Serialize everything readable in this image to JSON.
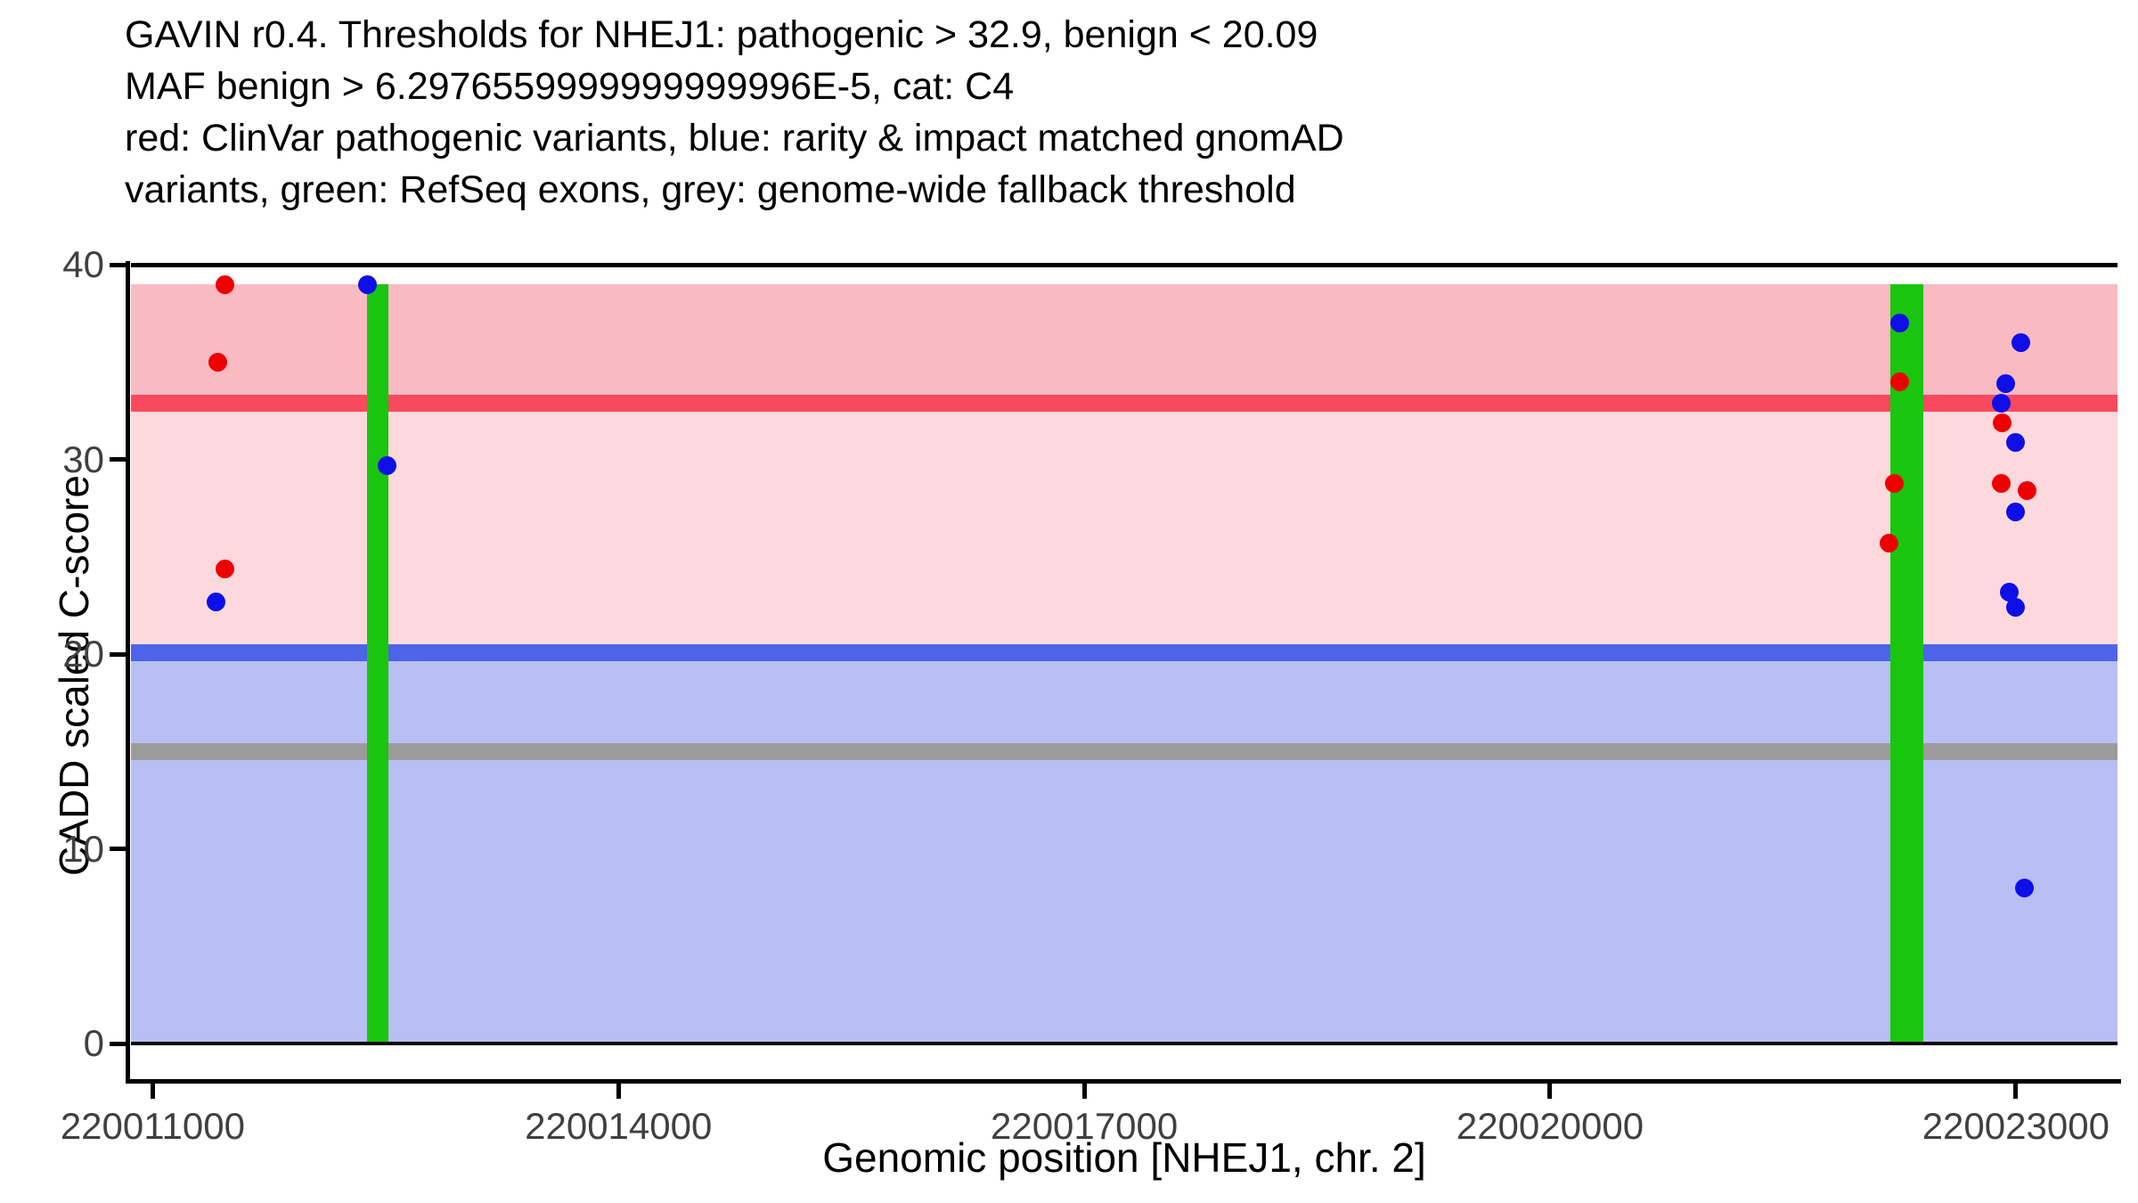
{
  "chart_data": {
    "type": "scatter",
    "title_lines": [
      "GAVIN r0.4. Thresholds for NHEJ1: pathogenic > 32.9, benign < 20.09",
      "MAF benign > 6.2976559999999999996E-5, cat: C4",
      "red: ClinVar pathogenic variants, blue: rarity & impact matched gnomAD",
      "variants, green: RefSeq exons, grey: genome-wide fallback threshold"
    ],
    "xlabel": "Genomic position [NHEJ1, chr. 2]",
    "ylabel": "CADD scaled C-score",
    "gene": "NHEJ1",
    "chromosome": "2",
    "xlim": [
      220010860,
      220023655
    ],
    "ylim": [
      -2,
      40.2
    ],
    "x_ticks": [
      220011000,
      220014000,
      220017000,
      220020000,
      220023000
    ],
    "y_ticks": [
      0,
      10,
      20,
      30,
      40
    ],
    "grid": false,
    "thresholds": {
      "pathogenic_gt": 32.9,
      "benign_lt": 20.09,
      "maf_benign_gt": "6.2976559999999999996E-5",
      "category": "C4",
      "genome_wide_fallback": 15
    },
    "regions": [
      {
        "name": "pathogenic-zone",
        "ymin": 32.9,
        "ymax": 39.0,
        "color_key": "region_pathogenic"
      },
      {
        "name": "intermediate-zone",
        "ymin": 20.09,
        "ymax": 32.9,
        "color_key": "region_intermediate"
      },
      {
        "name": "benign-zone",
        "ymin": 0,
        "ymax": 20.09,
        "color_key": "region_benign"
      }
    ],
    "threshold_lines": [
      {
        "name": "pathogenic",
        "y": 32.9,
        "color_key": "pathogenic_line",
        "thickness_px": 19
      },
      {
        "name": "benign",
        "y": 20.09,
        "color_key": "benign_line",
        "thickness_px": 19
      },
      {
        "name": "fallback",
        "y": 15,
        "color_key": "fallback_line",
        "thickness_px": 19
      }
    ],
    "baselines": [
      {
        "name": "top-baseline",
        "y": 40,
        "thickness_px": 5
      },
      {
        "name": "zero-baseline",
        "y": 0,
        "thickness_px": 4
      }
    ],
    "exons": [
      {
        "start": 220012382,
        "end": 220012520,
        "ymin": 0,
        "ymax": 39.0
      },
      {
        "start": 220022191,
        "end": 220022403,
        "ymin": 0,
        "ymax": 39.0
      }
    ],
    "series": [
      {
        "name": "ClinVar pathogenic variants",
        "color_key": "clinvar_point",
        "points": [
          [
            220011465,
            39.0
          ],
          [
            220011419,
            35.0
          ],
          [
            220011465,
            24.4
          ],
          [
            220022254,
            34.0
          ],
          [
            220022220,
            28.8
          ],
          [
            220022185,
            25.7
          ],
          [
            220022914,
            31.9
          ],
          [
            220022908,
            28.8
          ],
          [
            220023075,
            28.4
          ]
        ]
      },
      {
        "name": "rarity & impact matched gnomAD variants",
        "color_key": "gnomad_point",
        "points": [
          [
            220012382,
            39.0
          ],
          [
            220012509,
            29.7
          ],
          [
            220011407,
            22.7
          ],
          [
            220022254,
            37.0
          ],
          [
            220023034,
            36.0
          ],
          [
            220022937,
            33.9
          ],
          [
            220022908,
            32.9
          ],
          [
            220023000,
            30.9
          ],
          [
            220023000,
            27.3
          ],
          [
            220022960,
            23.2
          ],
          [
            220023000,
            22.4
          ],
          [
            220023057,
            8.0
          ]
        ]
      }
    ]
  },
  "colors": {
    "region_pathogenic": "#f9bac1",
    "region_intermediate": "#fdd8dd",
    "region_benign": "#b8bff3",
    "pathogenic_line": "#f8495e",
    "benign_line": "#4d64e8",
    "fallback_line": "#9b9b9b",
    "exon": "#1ac510",
    "clinvar_point": "#ee0000",
    "gnomad_point": "#0e0ee6",
    "baseline": "#000000",
    "axis": "#000000",
    "tick_text": "#404040",
    "title_text": "#000000"
  }
}
